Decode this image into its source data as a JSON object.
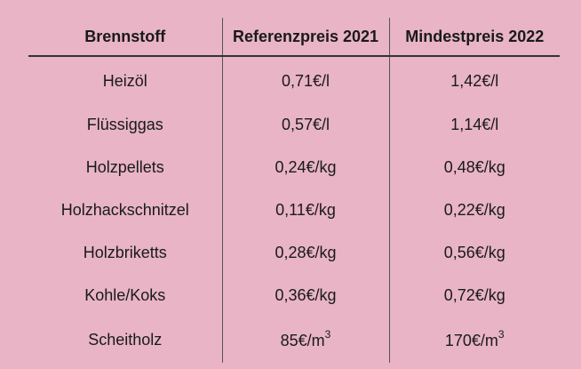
{
  "table": {
    "headers": [
      "Brennstoff",
      "Referenzpreis 2021",
      "Mindestpreis 2022"
    ],
    "rows": [
      [
        "Heizöl",
        "0,71€/l",
        "1,42€/l"
      ],
      [
        "Flüssiggas",
        "0,57€/l",
        "1,14€/l"
      ],
      [
        "Holzpellets",
        "0,24€/kg",
        "0,48€/kg"
      ],
      [
        "Holzhackschnitzel",
        "0,11€/kg",
        "0,22€/kg"
      ],
      [
        "Holzbriketts",
        "0,28€/kg",
        "0,56€/kg"
      ],
      [
        "Kohle/Koks",
        "0,36€/kg",
        "0,72€/kg"
      ],
      [
        "Scheitholz",
        "85€/m",
        "170€/m"
      ]
    ],
    "unit_exponent": "3"
  },
  "colors": {
    "background": "#e8b4c6",
    "text": "#1a1a1a",
    "rules": "#333333"
  }
}
